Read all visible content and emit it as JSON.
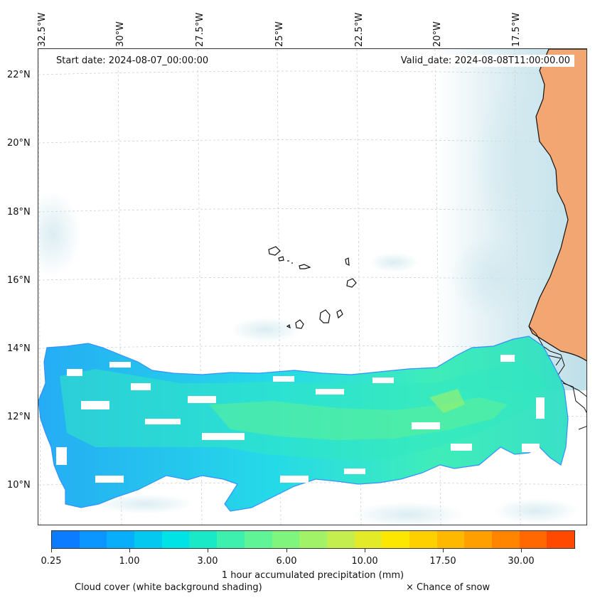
{
  "map": {
    "longitude_labels": [
      "32.5°W",
      "30°W",
      "27.5°W",
      "25°W",
      "22.5°W",
      "20°W",
      "17.5°W"
    ],
    "latitude_labels": [
      "22°N",
      "20°N",
      "18°N",
      "16°N",
      "14°N",
      "12°N",
      "10°N"
    ],
    "start_date": "Start date: 2024-08-07_00:00:00",
    "valid_date": "Valid_date: 2024-08-08T11:00:00.00",
    "land_color": "#f4a26a",
    "cloud_color": "#b7dbe6"
  },
  "colorbar": {
    "colors": [
      "#0b7cff",
      "#0a95ff",
      "#08aef9",
      "#04c8f0",
      "#00e3e6",
      "#1ae9c8",
      "#3df0ad",
      "#5ff495",
      "#80f57e",
      "#a1f266",
      "#c3ee4d",
      "#e3ea28",
      "#fbe700",
      "#ffd000",
      "#ffb800",
      "#ff9f00",
      "#ff8400",
      "#ff6700",
      "#ff4800"
    ],
    "tick_labels": [
      "0.25",
      "1.00",
      "3.00",
      "6.00",
      "10.00",
      "17.50",
      "30.00"
    ],
    "label": "1 hour accumulated precipitation (mm)"
  },
  "legend": {
    "cloud_cover": "Cloud cover (white background shading)",
    "snow": "× Chance of snow"
  }
}
